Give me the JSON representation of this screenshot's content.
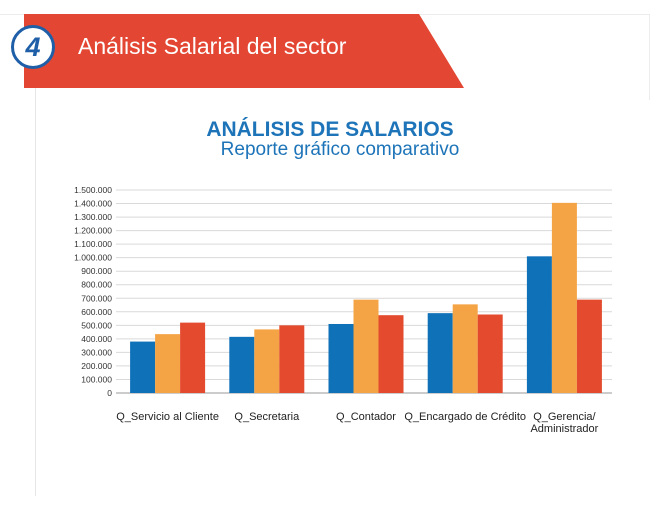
{
  "header": {
    "step_number": "4",
    "title": "Análisis Salarial del sector"
  },
  "chart_data": {
    "type": "bar",
    "title": "ANÁLISIS DE SALARIOS",
    "subtitle": "Reporte gráfico comparativo",
    "categories": [
      [
        "Q_Servicio al Cliente"
      ],
      [
        "Q_Secretaria"
      ],
      [
        "Q_Contador"
      ],
      [
        "Q_Encargado de Crédito"
      ],
      [
        "Q_Gerencia/",
        "Administrador"
      ]
    ],
    "series": [
      {
        "color": "#0f71b8",
        "values": [
          380000,
          415000,
          510000,
          590000,
          1010000
        ]
      },
      {
        "color": "#f4a445",
        "values": [
          435000,
          470000,
          690000,
          655000,
          1405000
        ]
      },
      {
        "color": "#e34a2e",
        "values": [
          520000,
          500000,
          575000,
          580000,
          690000
        ]
      }
    ],
    "ylim": [
      0,
      1500000
    ],
    "ytick_step": 100000,
    "ytick_labels": [
      "0",
      "100.000",
      "200.000",
      "300.000",
      "400.000",
      "500.000",
      "600.000",
      "700.000",
      "800.000",
      "900.000",
      "1.000.000",
      "1.100.000",
      "1.200.000",
      "1.300.000",
      "1.400.000",
      "1.500.000"
    ],
    "grid": true,
    "legend": "none"
  }
}
